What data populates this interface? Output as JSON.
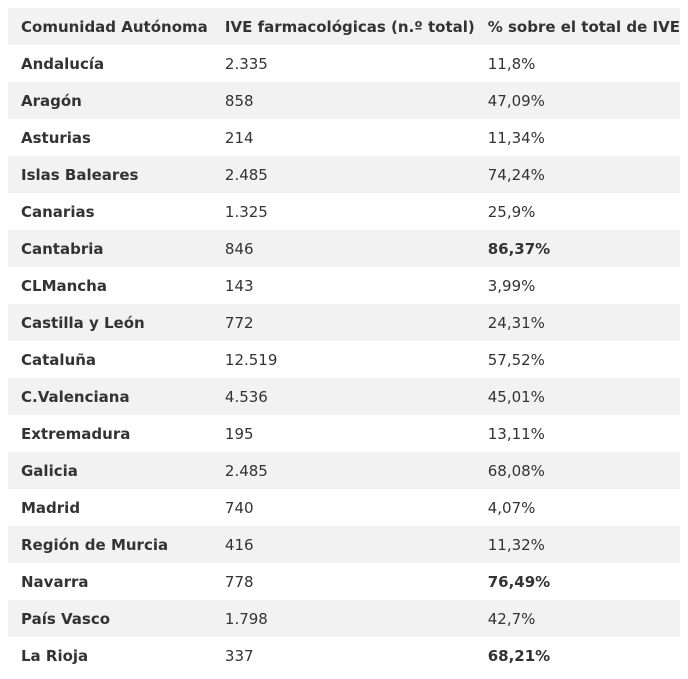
{
  "table": {
    "header": [
      "Comunidad Autónoma",
      "IVE farmacológicas (n.º total)",
      "% sobre el total de IVE"
    ],
    "rows": [
      {
        "cells": [
          "Andalucía",
          "2.335",
          "11,8%"
        ]
      },
      {
        "cells": [
          "Aragón",
          "858",
          "47,09%"
        ]
      },
      {
        "cells": [
          "Asturias",
          "214",
          "11,34%"
        ]
      },
      {
        "cells": [
          "Islas Baleares",
          "2.485",
          "74,24%"
        ]
      },
      {
        "cells": [
          "Canarias",
          "1.325",
          "25,9%"
        ]
      },
      {
        "cells": [
          "Cantabria",
          "846",
          "86,37%"
        ],
        "bold": true
      },
      {
        "cells": [
          "CLMancha",
          "143",
          "3,99%"
        ]
      },
      {
        "cells": [
          "Castilla y León",
          "772",
          "24,31%"
        ]
      },
      {
        "cells": [
          "Cataluña",
          "12.519",
          "57,52%"
        ]
      },
      {
        "cells": [
          "C.Valenciana",
          "4.536",
          "45,01%"
        ]
      },
      {
        "cells": [
          "Extremadura",
          "195",
          "13,11%"
        ]
      },
      {
        "cells": [
          "Galicia",
          "2.485",
          "68,08%"
        ]
      },
      {
        "cells": [
          "Madrid",
          "740",
          "4,07%"
        ]
      },
      {
        "cells": [
          "Región de Murcia",
          "416",
          "11,32%"
        ]
      },
      {
        "cells": [
          "Navarra",
          "778",
          "76,49%"
        ],
        "bold": true
      },
      {
        "cells": [
          "País Vasco",
          "1.798",
          "42,7%"
        ]
      },
      {
        "cells": [
          "La Rioja",
          "337",
          "68,21%"
        ],
        "bold": true
      }
    ]
  }
}
